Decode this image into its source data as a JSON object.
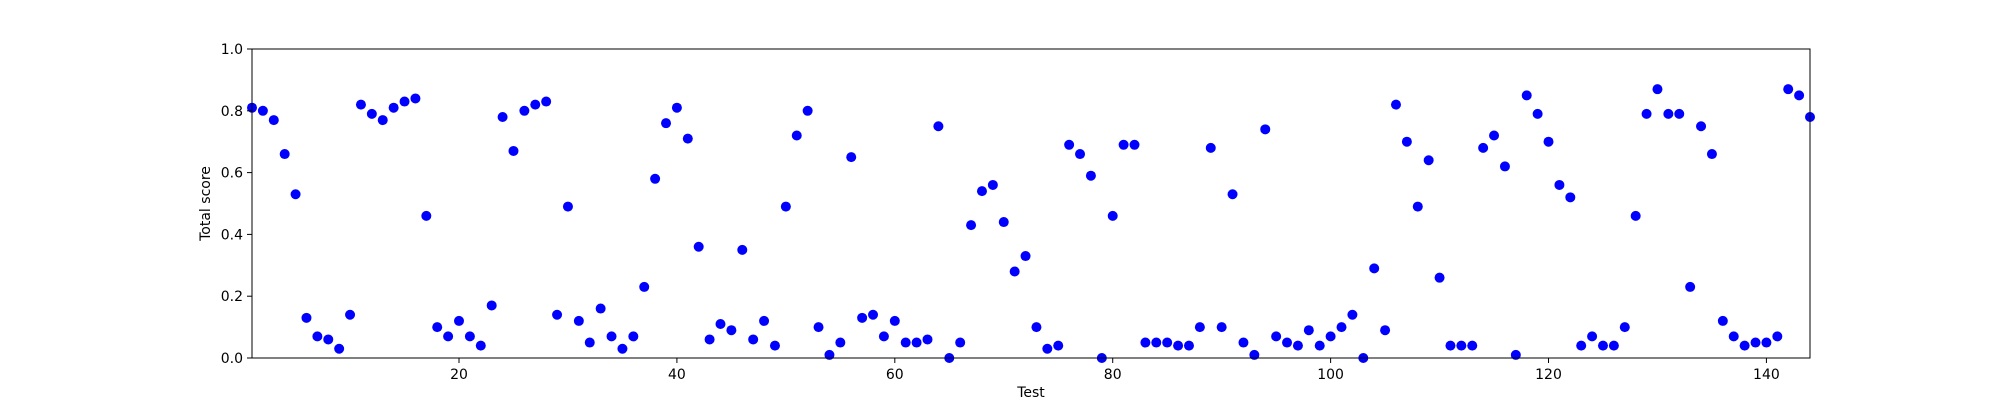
{
  "chart_data": {
    "type": "scatter",
    "title": "",
    "xlabel": "Test",
    "ylabel": "Total score",
    "xlim": [
      1,
      144
    ],
    "ylim": [
      0.0,
      1.0
    ],
    "xticks": [
      20,
      40,
      60,
      80,
      100,
      120,
      140
    ],
    "yticks": [
      0.0,
      0.2,
      0.4,
      0.6,
      0.8,
      1.0
    ],
    "xtick_labels": [
      "20",
      "40",
      "60",
      "80",
      "100",
      "120",
      "140"
    ],
    "ytick_labels": [
      "0.0",
      "0.2",
      "0.4",
      "0.6",
      "0.8",
      "1.0"
    ],
    "grid": false,
    "legend": "none",
    "marker_color": "#0000ff",
    "x": [
      1,
      2,
      3,
      4,
      5,
      6,
      7,
      8,
      9,
      10,
      11,
      12,
      13,
      14,
      15,
      16,
      17,
      18,
      19,
      20,
      21,
      22,
      23,
      24,
      25,
      26,
      27,
      28,
      29,
      30,
      31,
      32,
      33,
      34,
      35,
      36,
      37,
      38,
      39,
      40,
      41,
      42,
      43,
      44,
      45,
      46,
      47,
      48,
      49,
      50,
      51,
      52,
      53,
      54,
      55,
      56,
      57,
      58,
      59,
      60,
      61,
      62,
      63,
      64,
      65,
      66,
      67,
      68,
      69,
      70,
      71,
      72,
      73,
      74,
      75,
      76,
      77,
      78,
      79,
      80,
      81,
      82,
      83,
      84,
      85,
      86,
      87,
      88,
      89,
      90,
      91,
      92,
      93,
      94,
      95,
      96,
      97,
      98,
      99,
      100,
      101,
      102,
      103,
      104,
      105,
      106,
      107,
      108,
      109,
      110,
      111,
      112,
      113,
      114,
      115,
      116,
      117,
      118,
      119,
      120,
      121,
      122,
      123,
      124,
      125,
      126,
      127,
      128,
      129,
      130,
      131,
      132,
      133,
      134,
      135,
      136,
      137,
      138,
      139,
      140,
      141,
      142,
      143,
      144
    ],
    "y": [
      0.81,
      0.8,
      0.77,
      0.66,
      0.53,
      0.13,
      0.07,
      0.06,
      0.03,
      0.14,
      0.82,
      0.79,
      0.77,
      0.81,
      0.83,
      0.84,
      0.46,
      0.1,
      0.07,
      0.12,
      0.07,
      0.04,
      0.17,
      0.78,
      0.67,
      0.8,
      0.82,
      0.83,
      0.14,
      0.49,
      0.12,
      0.05,
      0.16,
      0.07,
      0.03,
      0.07,
      0.23,
      0.58,
      0.76,
      0.81,
      0.71,
      0.36,
      0.06,
      0.11,
      0.09,
      0.35,
      0.06,
      0.12,
      0.04,
      0.49,
      0.72,
      0.8,
      0.1,
      0.01,
      0.05,
      0.65,
      0.13,
      0.14,
      0.07,
      0.12,
      0.05,
      0.05,
      0.06,
      0.75,
      0.0,
      0.05,
      0.43,
      0.54,
      0.56,
      0.44,
      0.28,
      0.33,
      0.1,
      0.03,
      0.04,
      0.69,
      0.66,
      0.59,
      0.0,
      0.46,
      0.69,
      0.69,
      0.05,
      0.05,
      0.05,
      0.04,
      0.04,
      0.1,
      0.68,
      0.1,
      0.53,
      0.05,
      0.01,
      0.74,
      0.07,
      0.05,
      0.04,
      0.09,
      0.04,
      0.07,
      0.1,
      0.14,
      0.0,
      0.29,
      0.09,
      0.82,
      0.7,
      0.49,
      0.64,
      0.26,
      0.04,
      0.04,
      0.04,
      0.68,
      0.72,
      0.62,
      0.01,
      0.85,
      0.79,
      0.7,
      0.56,
      0.52,
      0.04,
      0.07,
      0.04,
      0.04,
      0.1,
      0.46,
      0.79,
      0.87,
      0.79,
      0.79,
      0.23,
      0.75,
      0.66,
      0.12,
      0.07,
      0.04,
      0.05,
      0.05,
      0.07,
      0.87,
      0.85,
      0.78
    ]
  }
}
